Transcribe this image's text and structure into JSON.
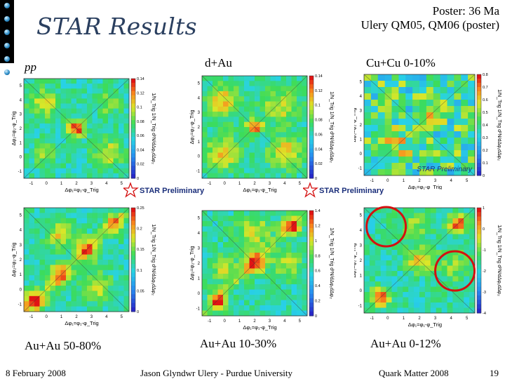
{
  "slide": {
    "title": "STAR Results",
    "poster_line1": "Poster: 36 Ma",
    "poster_line2": "Ulery QM05, QM06 (poster)"
  },
  "panels": [
    {
      "label": "pp",
      "scale": [
        "0.14",
        "0.12",
        "0.1",
        "0.08",
        "0.06",
        "0.04",
        "0.02",
        "0"
      ],
      "seed": 3
    },
    {
      "label": "d+Au",
      "scale": [
        "0.14",
        "0.12",
        "0.1",
        "0.08",
        "0.06",
        "0.04",
        "0.02",
        "0"
      ],
      "seed": 11
    },
    {
      "label": "Cu+Cu 0-10%",
      "scale": [
        "0.8",
        "0.7",
        "0.6",
        "0.5",
        "0.4",
        "0.3",
        "0.2",
        "0.1",
        "0"
      ],
      "seed": 17
    },
    {
      "label": "Au+Au 50-80%",
      "scale": [
        "0.25",
        "0.2",
        "0.15",
        "0.1",
        "0.05",
        "0"
      ],
      "seed": 23
    },
    {
      "label": "Au+Au 10-30%",
      "scale": [
        "1.4",
        "1.2",
        "1",
        "0.8",
        "0.6",
        "0.4",
        "0.2",
        "0"
      ],
      "seed": 29
    },
    {
      "label": "Au+Au 0-12%",
      "scale": [
        "1",
        "0",
        "-1",
        "-2",
        "-3",
        "-4"
      ],
      "seed": 31
    }
  ],
  "axes": {
    "x_label": "Δφ₁=φ₁-φ_Trig",
    "y_label": "Δφ₂=φ₂-φ_Trig",
    "z_label": "1/N_Trig 1/N_Trig d²N/dΔφ₁dΔφ₂",
    "ticks": [
      "-1",
      "0",
      "1",
      "2",
      "3",
      "4",
      "5"
    ]
  },
  "stamps": {
    "star_preliminary": "STAR Preliminary",
    "cucu_preliminary": "STAR Preliminary"
  },
  "footer": {
    "date": "8 February 2008",
    "author": "Jason Glyndwr Ulery - Purdue University",
    "conference": "Quark Matter 2008",
    "page": "19"
  },
  "colors": {
    "title": "#2a3f5f",
    "circle": "#d41010",
    "stamp": "#1a2e7a"
  }
}
